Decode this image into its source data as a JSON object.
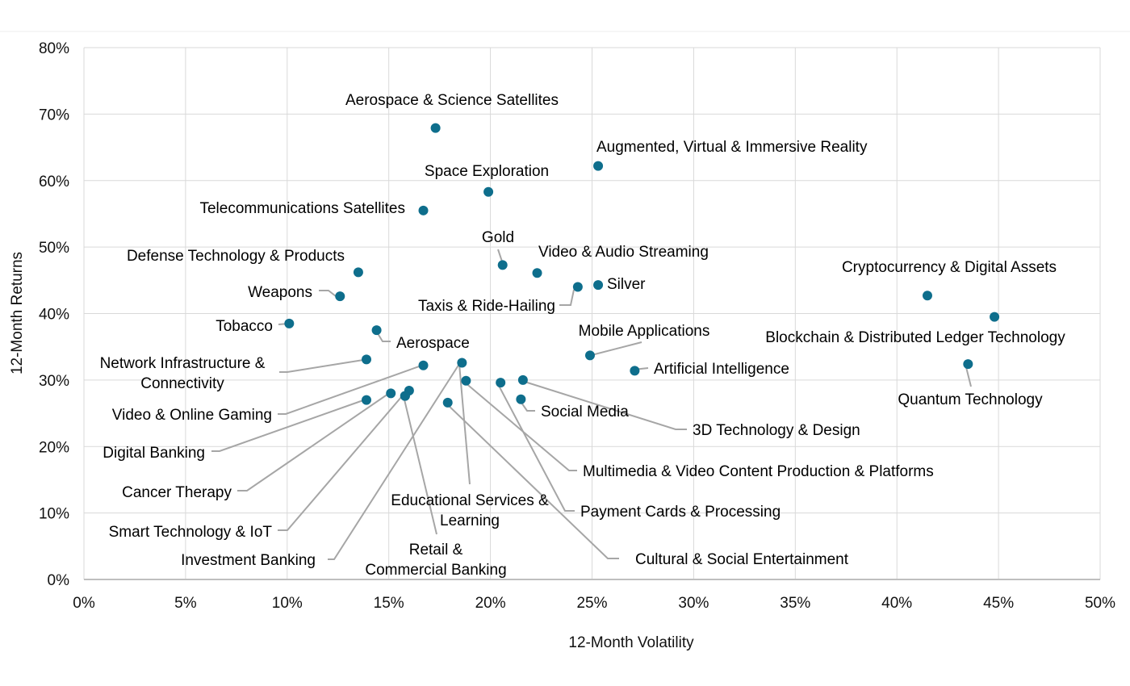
{
  "chart_data": {
    "type": "scatter",
    "xlabel": "12-Month Volatility",
    "ylabel": "12-Month Returns",
    "xlim": [
      0,
      50
    ],
    "ylim": [
      0,
      80
    ],
    "x_ticks": [
      "0%",
      "5%",
      "10%",
      "15%",
      "20%",
      "25%",
      "30%",
      "35%",
      "40%",
      "45%",
      "50%"
    ],
    "y_ticks": [
      "0%",
      "10%",
      "20%",
      "30%",
      "40%",
      "50%",
      "60%",
      "70%",
      "80%"
    ],
    "grid": true,
    "marker_color": "#0E6E8C",
    "points": [
      {
        "label": "Aerospace & Science Satellites",
        "x": 17.3,
        "y": 67.9
      },
      {
        "label": "Augmented, Virtual & Immersive Reality",
        "x": 25.3,
        "y": 62.2
      },
      {
        "label": "Space Exploration",
        "x": 19.9,
        "y": 58.3
      },
      {
        "label": "Telecommunications Satellites",
        "x": 16.7,
        "y": 55.5
      },
      {
        "label": "Gold",
        "x": 20.6,
        "y": 47.3
      },
      {
        "label": "Defense Technology & Products",
        "x": 13.5,
        "y": 46.2
      },
      {
        "label": "Video & Audio Streaming",
        "x": 22.3,
        "y": 46.1
      },
      {
        "label": "Silver",
        "x": 25.3,
        "y": 44.3
      },
      {
        "label": "Taxis & Ride-Hailing",
        "x": 24.3,
        "y": 44.0
      },
      {
        "label": "Weapons",
        "x": 12.6,
        "y": 42.6
      },
      {
        "label": "Cryptocurrency & Digital Assets",
        "x": 41.5,
        "y": 42.7
      },
      {
        "label": "Blockchain & Distributed Ledger Technology",
        "x": 44.8,
        "y": 39.5
      },
      {
        "label": "Tobacco",
        "x": 10.1,
        "y": 38.5
      },
      {
        "label": "Aerospace",
        "x": 14.4,
        "y": 37.5
      },
      {
        "label": "Mobile Applications",
        "x": 24.9,
        "y": 33.7
      },
      {
        "label": "Network Infrastructure & Connectivity",
        "x": 13.9,
        "y": 33.1
      },
      {
        "label": "Educational Services & Learning",
        "x": 18.6,
        "y": 32.6
      },
      {
        "label": "Quantum Technology",
        "x": 43.5,
        "y": 32.4
      },
      {
        "label": "Video & Online Gaming",
        "x": 16.7,
        "y": 32.2
      },
      {
        "label": "Artificial Intelligence",
        "x": 27.1,
        "y": 31.4
      },
      {
        "label": "3D Technology & Design",
        "x": 21.6,
        "y": 30.0
      },
      {
        "label": "Multimedia & Video Content Production & Platforms",
        "x": 18.8,
        "y": 29.9
      },
      {
        "label": "Payment Cards & Processing",
        "x": 20.5,
        "y": 29.6
      },
      {
        "label": "Retail & Commercial Banking",
        "x": 16.0,
        "y": 28.4
      },
      {
        "label": "Cancer Therapy",
        "x": 15.1,
        "y": 28.0
      },
      {
        "label": "Smart Technology & IoT",
        "x": 15.8,
        "y": 27.6
      },
      {
        "label": "Investment Banking",
        "x": 15.8,
        "y": 27.6
      },
      {
        "label": "Social Media",
        "x": 21.5,
        "y": 27.1
      },
      {
        "label": "Digital Banking",
        "x": 13.9,
        "y": 27.0
      },
      {
        "label": "Cultural & Social Entertainment",
        "x": 17.9,
        "y": 26.6
      }
    ]
  }
}
